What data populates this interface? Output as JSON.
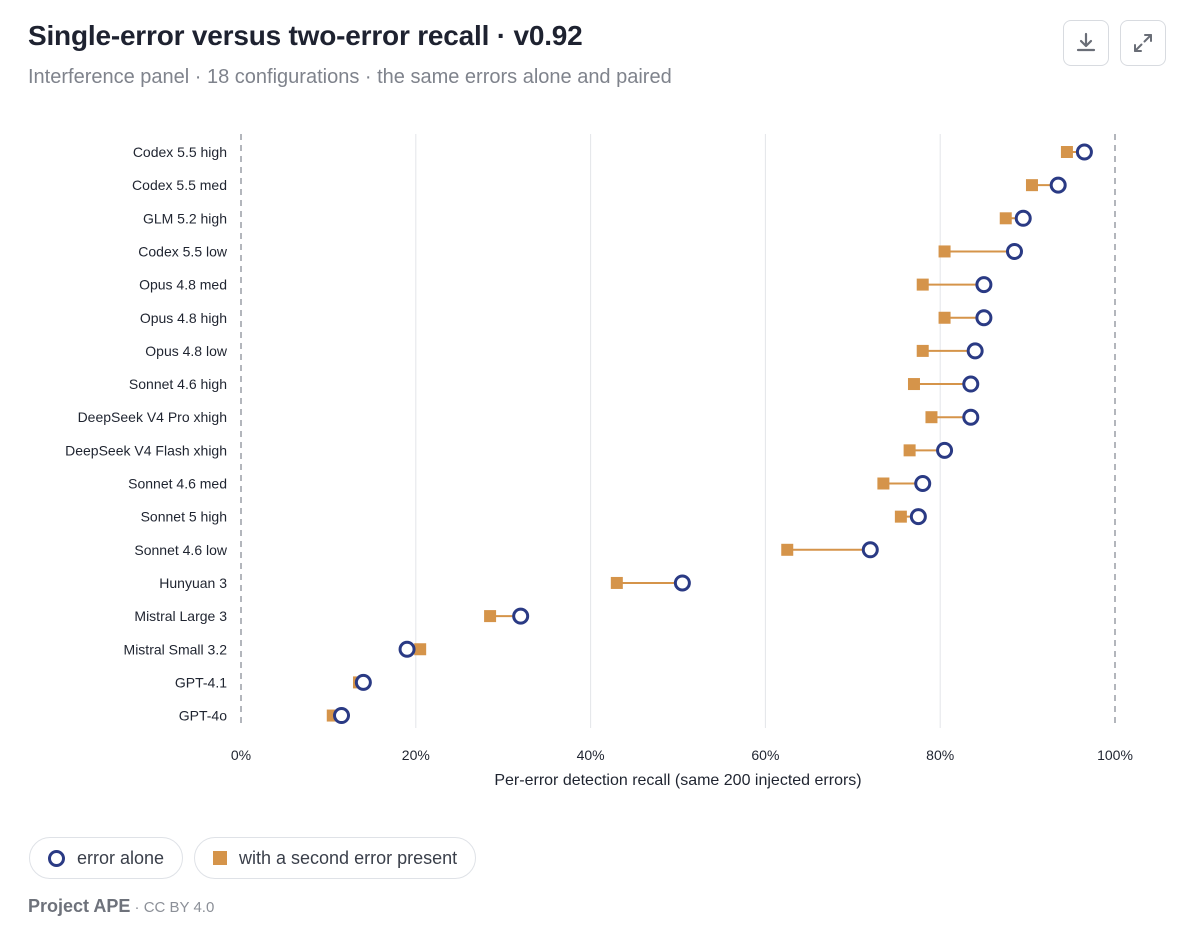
{
  "header": {
    "title": "Single-error versus two-error recall · v0.92",
    "subtitle": "Interference panel · 18 configurations · the same errors alone and paired"
  },
  "toolbar": {
    "download_icon": "download-icon",
    "expand_icon": "expand-icon"
  },
  "colors": {
    "alone": "#2a3a84",
    "paired": "#d5944a",
    "connector": "#d5944a",
    "grid": "#e3e5e9",
    "reference_line": "#9a9ea6"
  },
  "chart_data": {
    "type": "dumbbell",
    "title": "Single-error versus two-error recall · v0.92",
    "xlabel": "Per-error detection recall (same 200 injected errors)",
    "ylabel": "",
    "xlim": [
      0,
      100
    ],
    "x_unit": "%",
    "x_ticks": [
      "0%",
      "20%",
      "40%",
      "60%",
      "80%",
      "100%"
    ],
    "x_tick_values": [
      0,
      20,
      40,
      60,
      80,
      100
    ],
    "reference_lines": [
      0,
      100
    ],
    "grid": true,
    "legend_position": "bottom-left",
    "categories": [
      "Codex 5.5 high",
      "Codex 5.5 med",
      "GLM 5.2 high",
      "Codex 5.5 low",
      "Opus 4.8 med",
      "Opus 4.8 high",
      "Opus 4.8 low",
      "Sonnet 4.6 high",
      "DeepSeek V4 Pro xhigh",
      "DeepSeek V4 Flash xhigh",
      "Sonnet 4.6 med",
      "Sonnet 5 high",
      "Sonnet 4.6 low",
      "Hunyuan 3",
      "Mistral Large 3",
      "Mistral Small 3.2",
      "GPT-4.1",
      "GPT-4o"
    ],
    "series": [
      {
        "name": "error alone",
        "marker": "circle",
        "values": [
          96.5,
          93.5,
          89.5,
          88.5,
          85,
          85,
          84,
          83.5,
          83.5,
          80.5,
          78,
          77.5,
          72,
          50.5,
          32,
          19,
          14,
          11.5
        ]
      },
      {
        "name": "with a second error present",
        "marker": "square",
        "values": [
          94.5,
          90.5,
          87.5,
          80.5,
          78,
          80.5,
          78,
          77,
          79,
          76.5,
          73.5,
          75.5,
          62.5,
          43,
          28.5,
          20.5,
          13.5,
          10.5
        ]
      }
    ]
  },
  "legend": {
    "alone_label": "error alone",
    "paired_label": "with a second error present"
  },
  "footer": {
    "brand": "Project APE",
    "license": " · CC BY 4.0"
  }
}
